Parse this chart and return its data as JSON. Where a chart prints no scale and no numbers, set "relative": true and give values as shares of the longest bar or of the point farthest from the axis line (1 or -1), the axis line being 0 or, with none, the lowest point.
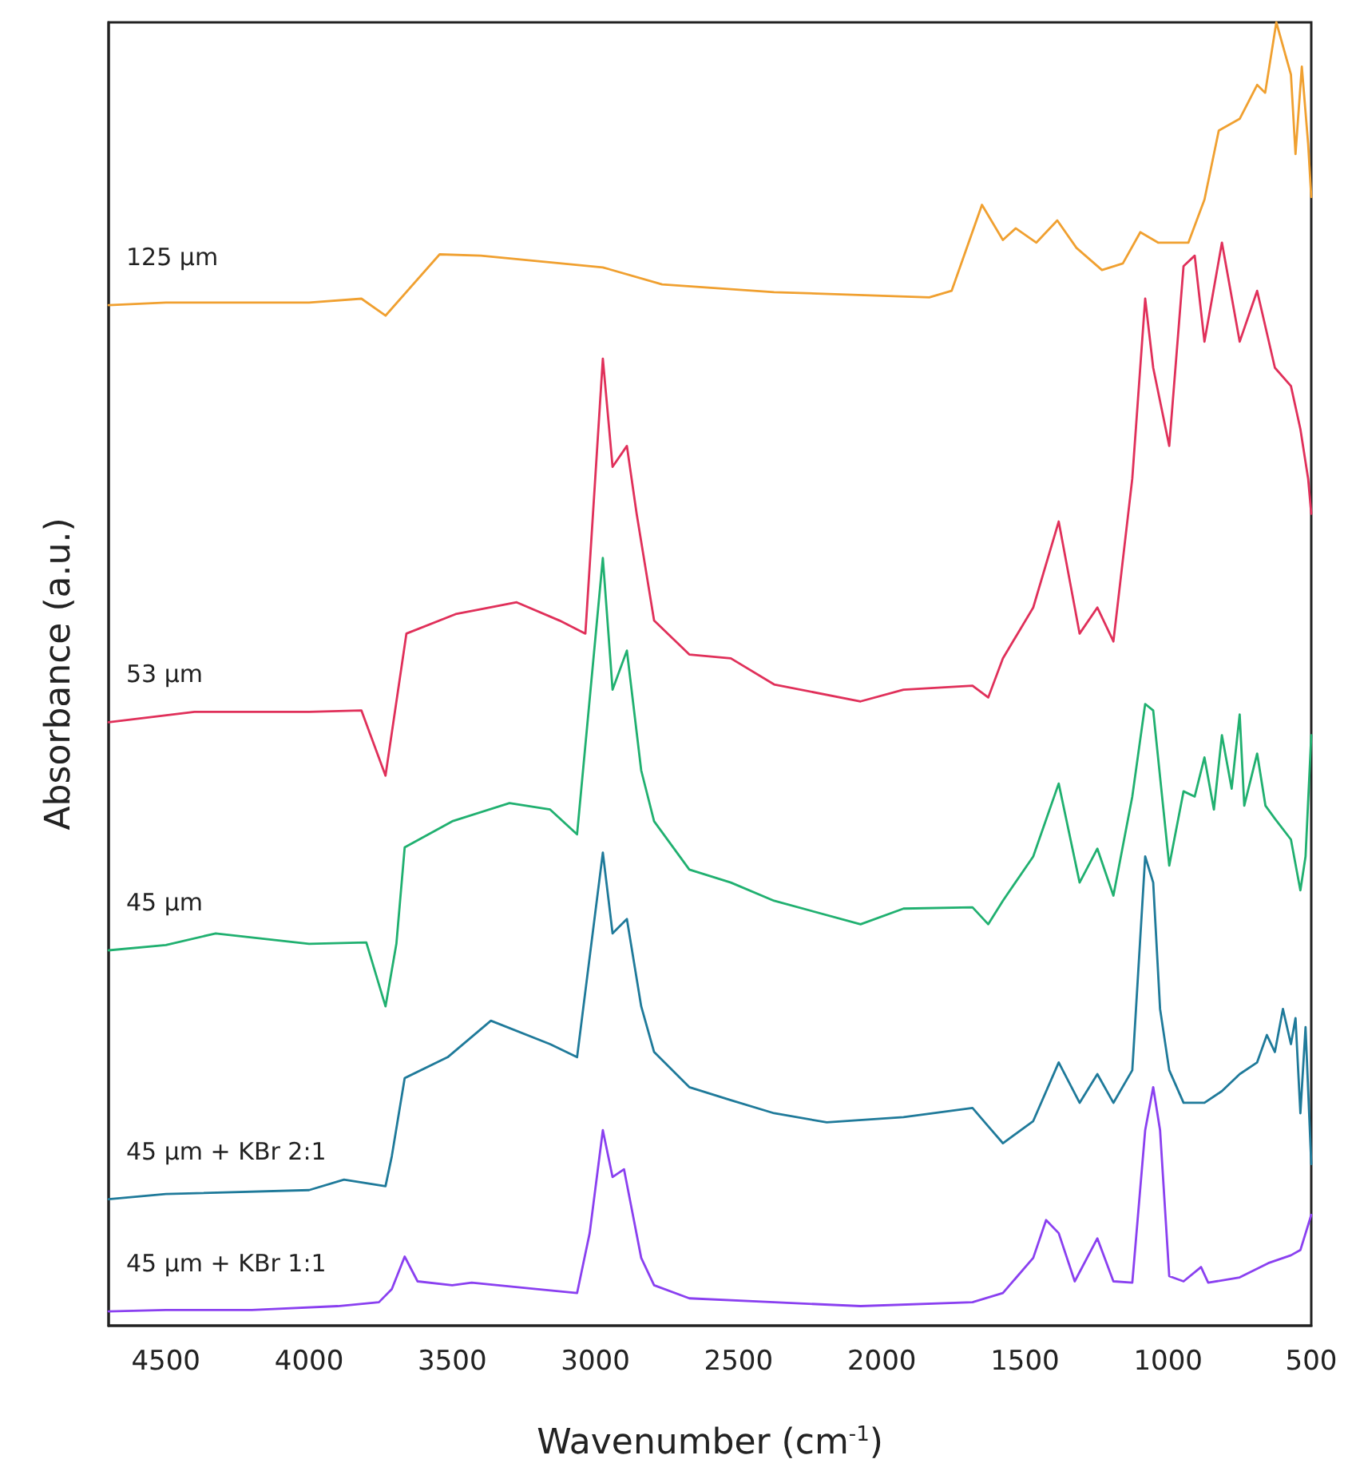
{
  "chart_data": {
    "type": "line",
    "relative": true,
    "xlabel": "Wavenumber (cm$^{-1}$)",
    "ylabel": "Absorbance (a.u.)",
    "xlim": [
      4700,
      500
    ],
    "xticks": [
      4500,
      4000,
      3500,
      3000,
      2500,
      2000,
      1500,
      1000,
      500
    ],
    "grid": false,
    "legend": false,
    "marker": "none",
    "line_style": "solid",
    "series": [
      {
        "name": "125 μm",
        "color": "#f0a030",
        "x": [
          4700,
          4500,
          4000,
          3817,
          3733,
          3544,
          3400,
          2974,
          2767,
          2376,
          1834,
          1756,
          1650,
          1577,
          1532,
          1460,
          1387,
          1320,
          1231,
          1158,
          1097,
          1035,
          929,
          873,
          823,
          750,
          689,
          661,
          622,
          571,
          555,
          533,
          511,
          500
        ],
        "values": [
          0.783,
          0.785,
          0.785,
          0.788,
          0.775,
          0.822,
          0.821,
          0.812,
          0.799,
          0.793,
          0.789,
          0.794,
          0.86,
          0.833,
          0.842,
          0.831,
          0.848,
          0.827,
          0.81,
          0.815,
          0.839,
          0.831,
          0.831,
          0.864,
          0.917,
          0.926,
          0.952,
          0.946,
          1.0,
          0.96,
          0.899,
          0.966,
          0.907,
          0.866
        ]
      },
      {
        "name": "53 μm",
        "color": "#e0305a",
        "x": [
          4700,
          4400,
          4000,
          3817,
          3733,
          3660,
          3488,
          3275,
          3125,
          3035,
          2974,
          2940,
          2890,
          2856,
          2795,
          2672,
          2527,
          2376,
          2074,
          1924,
          1683,
          1628,
          1577,
          1471,
          1382,
          1309,
          1247,
          1191,
          1125,
          1080,
          1052,
          996,
          946,
          907,
          873,
          812,
          750,
          689,
          627,
          571,
          538,
          511,
          500
        ],
        "values": [
          0.463,
          0.471,
          0.471,
          0.472,
          0.422,
          0.531,
          0.546,
          0.555,
          0.541,
          0.531,
          0.742,
          0.659,
          0.675,
          0.623,
          0.541,
          0.515,
          0.512,
          0.492,
          0.479,
          0.488,
          0.491,
          0.482,
          0.512,
          0.551,
          0.617,
          0.531,
          0.551,
          0.525,
          0.65,
          0.788,
          0.735,
          0.675,
          0.813,
          0.821,
          0.755,
          0.831,
          0.755,
          0.794,
          0.735,
          0.721,
          0.688,
          0.65,
          0.623
        ]
      },
      {
        "name": "45 μm",
        "color": "#20b070",
        "x": [
          4700,
          4500,
          4326,
          4000,
          3800,
          3733,
          3695,
          3666,
          3500,
          3300,
          3158,
          3064,
          2974,
          2940,
          2890,
          2840,
          2795,
          2672,
          2527,
          2376,
          2074,
          1924,
          1683,
          1628,
          1577,
          1471,
          1382,
          1309,
          1247,
          1191,
          1125,
          1080,
          1052,
          996,
          946,
          907,
          873,
          840,
          812,
          778,
          750,
          734,
          689,
          660,
          627,
          571,
          538,
          520,
          500
        ],
        "values": [
          0.288,
          0.292,
          0.301,
          0.293,
          0.294,
          0.245,
          0.293,
          0.367,
          0.387,
          0.401,
          0.396,
          0.377,
          0.589,
          0.488,
          0.518,
          0.426,
          0.387,
          0.35,
          0.34,
          0.326,
          0.308,
          0.32,
          0.321,
          0.308,
          0.326,
          0.36,
          0.416,
          0.34,
          0.366,
          0.33,
          0.406,
          0.477,
          0.472,
          0.353,
          0.41,
          0.406,
          0.436,
          0.396,
          0.453,
          0.412,
          0.469,
          0.399,
          0.439,
          0.399,
          0.389,
          0.373,
          0.334,
          0.36,
          0.453
        ]
      },
      {
        "name": "45 μm + KBr 2:1",
        "color": "#1f7a9a",
        "x": [
          4700,
          4500,
          4000,
          3878,
          3733,
          3711,
          3666,
          3516,
          3365,
          3158,
          3064,
          2974,
          2940,
          2890,
          2840,
          2795,
          2672,
          2527,
          2376,
          2192,
          1924,
          1683,
          1628,
          1577,
          1471,
          1382,
          1309,
          1247,
          1191,
          1125,
          1080,
          1052,
          1028,
          996,
          946,
          907,
          873,
          812,
          750,
          689,
          655,
          627,
          599,
          571,
          555,
          538,
          520,
          500
        ],
        "values": [
          0.097,
          0.101,
          0.104,
          0.112,
          0.107,
          0.13,
          0.19,
          0.206,
          0.234,
          0.216,
          0.206,
          0.363,
          0.301,
          0.312,
          0.245,
          0.21,
          0.183,
          0.173,
          0.163,
          0.156,
          0.16,
          0.167,
          0.153,
          0.14,
          0.157,
          0.202,
          0.171,
          0.193,
          0.171,
          0.196,
          0.36,
          0.34,
          0.243,
          0.196,
          0.171,
          0.171,
          0.171,
          0.18,
          0.193,
          0.202,
          0.223,
          0.21,
          0.243,
          0.216,
          0.236,
          0.163,
          0.229,
          0.124
        ]
      },
      {
        "name": "45 μm + KBr 1:1",
        "color": "#8a40f0",
        "x": [
          4700,
          4500,
          4200,
          3900,
          3756,
          3711,
          3666,
          3621,
          3500,
          3432,
          3200,
          3064,
          3020,
          2974,
          2940,
          2900,
          2840,
          2795,
          2672,
          2376,
          2074,
          1683,
          1577,
          1471,
          1426,
          1382,
          1326,
          1247,
          1191,
          1125,
          1080,
          1052,
          1028,
          996,
          946,
          885,
          860,
          750,
          650,
          571,
          538,
          500
        ],
        "values": [
          0.011,
          0.012,
          0.012,
          0.015,
          0.018,
          0.028,
          0.053,
          0.034,
          0.031,
          0.033,
          0.028,
          0.025,
          0.071,
          0.15,
          0.114,
          0.12,
          0.052,
          0.031,
          0.021,
          0.018,
          0.015,
          0.018,
          0.025,
          0.052,
          0.081,
          0.071,
          0.034,
          0.067,
          0.034,
          0.033,
          0.15,
          0.183,
          0.15,
          0.038,
          0.034,
          0.045,
          0.033,
          0.037,
          0.048,
          0.054,
          0.058,
          0.085
        ]
      }
    ]
  }
}
